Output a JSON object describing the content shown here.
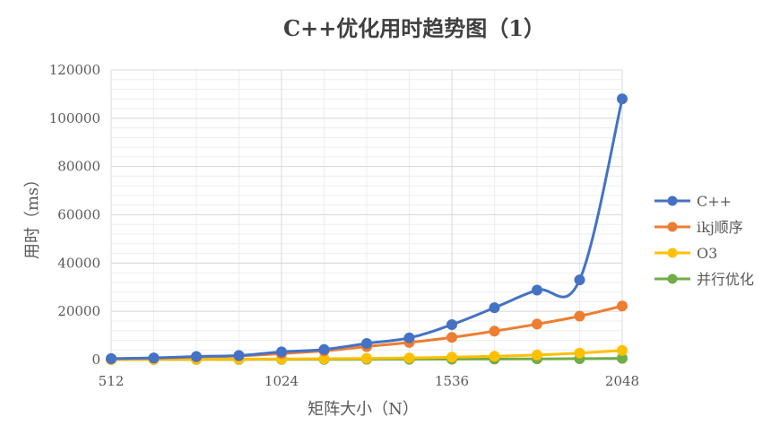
{
  "chart_data": {
    "type": "line",
    "title": "C++优化用时趋势图（1）",
    "xlabel": "矩阵大小（N）",
    "ylabel": "用时（ms）",
    "x": [
      512,
      640,
      768,
      896,
      1024,
      1152,
      1280,
      1408,
      1536,
      1664,
      1792,
      1920,
      2048
    ],
    "xticks": [
      512,
      1024,
      1536,
      2048
    ],
    "xlim": [
      512,
      2048
    ],
    "ylim": [
      0,
      120000
    ],
    "yticks": [
      0,
      20000,
      40000,
      60000,
      80000,
      100000,
      120000
    ],
    "grid": true,
    "legend": "right",
    "series": [
      {
        "name": "C++",
        "color": "#4472C4",
        "values": [
          400,
          700,
          1300,
          1700,
          3200,
          4200,
          6700,
          9000,
          14500,
          21500,
          28800,
          33000,
          108000
        ]
      },
      {
        "name": "ikj顺序",
        "color": "#ED7D31",
        "values": [
          300,
          600,
          1100,
          1500,
          2500,
          3600,
          5400,
          7100,
          9200,
          11800,
          14700,
          18000,
          22200
        ]
      },
      {
        "name": "O3",
        "color": "#FFC000",
        "values": [
          50,
          80,
          120,
          180,
          280,
          380,
          500,
          700,
          1000,
          1400,
          1900,
          2700,
          3800
        ]
      },
      {
        "name": "并行优化",
        "color": "#70AD47",
        "values": [
          20,
          30,
          40,
          60,
          80,
          100,
          120,
          150,
          200,
          250,
          300,
          380,
          500
        ]
      }
    ]
  }
}
